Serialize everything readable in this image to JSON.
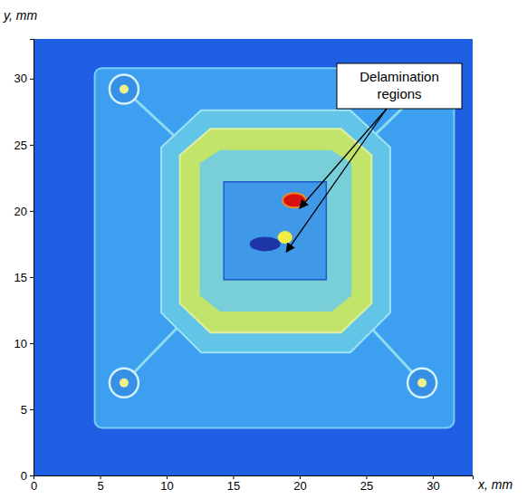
{
  "chart_data": {
    "type": "image",
    "xlabel": "x, mm",
    "ylabel": "y, mm",
    "xlim": [
      0,
      33
    ],
    "ylim": [
      0,
      33
    ],
    "xticks": [
      0,
      5,
      10,
      15,
      20,
      25,
      30
    ],
    "yticks": [
      0,
      5,
      10,
      15,
      20,
      25,
      30
    ],
    "annotations": [
      {
        "text": "Delamination regions",
        "targets": [
          {
            "x": 20,
            "y": 20.2
          },
          {
            "x": 19,
            "y": 16.9
          }
        ]
      }
    ]
  }
}
